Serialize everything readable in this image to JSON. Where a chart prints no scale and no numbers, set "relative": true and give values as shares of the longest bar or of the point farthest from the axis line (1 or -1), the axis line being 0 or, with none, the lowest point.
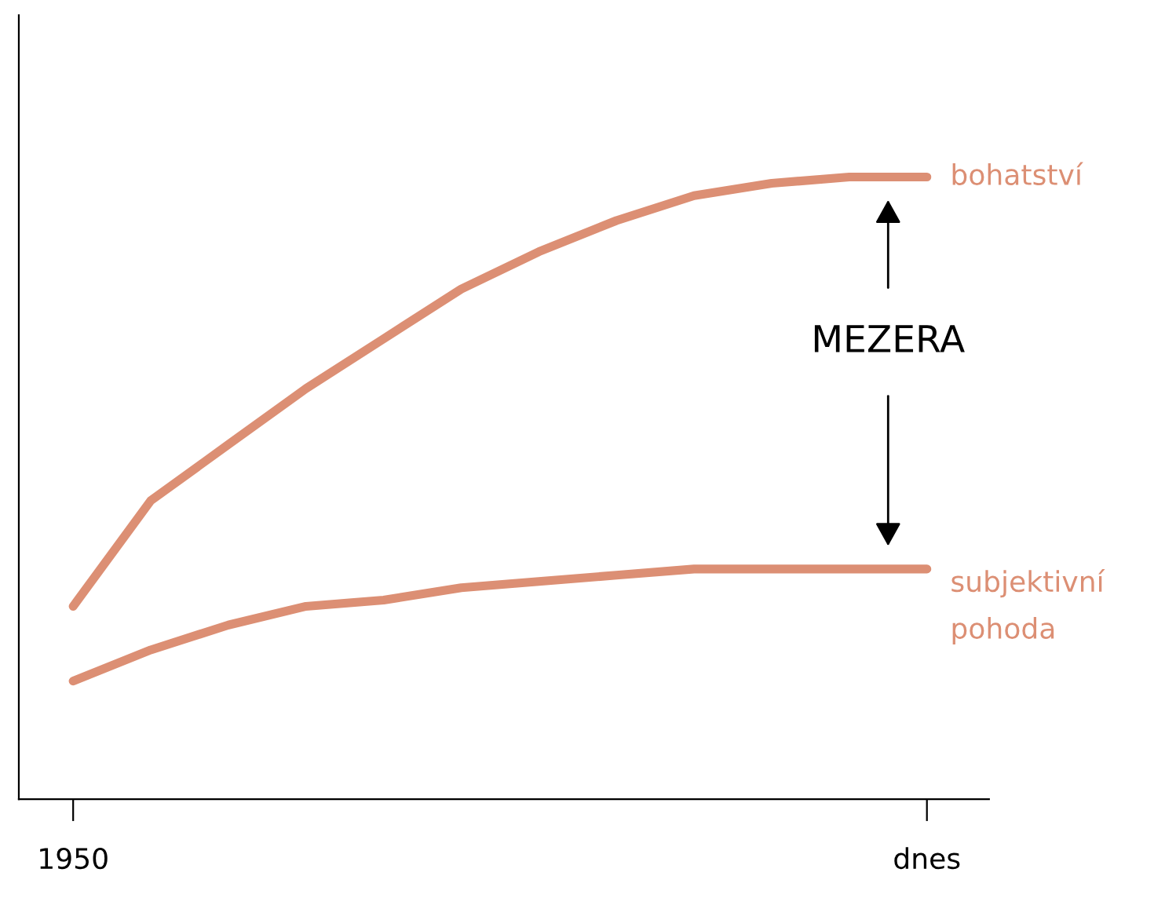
{
  "chart_data": {
    "type": "line",
    "relative": true,
    "categories": [
      "1950",
      null,
      null,
      null,
      null,
      null,
      null,
      null,
      null,
      null,
      null,
      "dnes"
    ],
    "series": [
      {
        "name": "bohatství",
        "color": "#dc8f74",
        "values": [
          0.31,
          0.48,
          0.57,
          0.66,
          0.74,
          0.82,
          0.88,
          0.93,
          0.97,
          0.99,
          1.0,
          1.0
        ]
      },
      {
        "name": "subjektivní pohoda",
        "color": "#dc8f74",
        "values": [
          0.19,
          0.24,
          0.28,
          0.31,
          0.32,
          0.34,
          0.35,
          0.36,
          0.37,
          0.37,
          0.37,
          0.37
        ]
      }
    ],
    "annotations": [
      "MEZERA"
    ],
    "grid": false,
    "legend": false,
    "marker": "none",
    "line_style": "solid"
  }
}
